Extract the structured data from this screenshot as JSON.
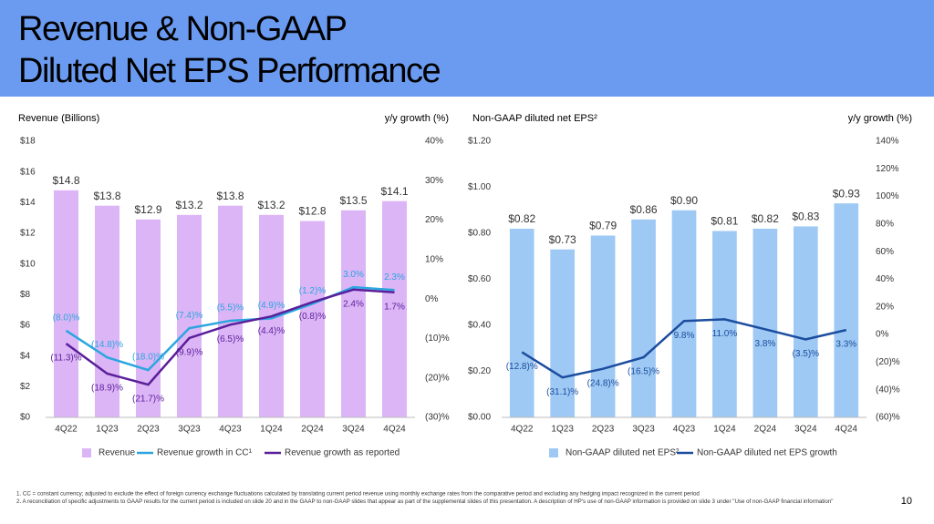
{
  "title": "Revenue & Non-GAAP Diluted Net EPS Performance",
  "footnotes": [
    "1.  CC = constant currency; adjusted to exclude the effect of foreign currency exchange fluctuations calculated by translating current period revenue using monthly exchange rates from the comparative period and excluding any hedging impact recognized in the current period",
    "2.  A reconciliation of specific adjustments to GAAP results for the current period is included on slide 20 and in the GAAP to non-GAAP slides that appear as part of the supplemental slides of this presentation. A description of HP's use of non-GAAP information is provided on slide 3 under \"Use of non-GAAP financial information\""
  ],
  "page_number": "10",
  "chart_data": [
    {
      "type": "bar",
      "y_label": "Revenue (Billions)",
      "y2_label": "y/y growth (%)",
      "categories": [
        "4Q22",
        "1Q23",
        "2Q23",
        "3Q23",
        "4Q23",
        "1Q24",
        "2Q24",
        "3Q24",
        "4Q24"
      ],
      "ylim": [
        0,
        18
      ],
      "yticks": [
        {
          "value": 0,
          "label": "$0"
        },
        {
          "value": 2,
          "label": "$2"
        },
        {
          "value": 4,
          "label": "$4"
        },
        {
          "value": 6,
          "label": "$6"
        },
        {
          "value": 8,
          "label": "$8"
        },
        {
          "value": 10,
          "label": "$10"
        },
        {
          "value": 12,
          "label": "$12"
        },
        {
          "value": 14,
          "label": "$14"
        },
        {
          "value": 16,
          "label": "$16"
        },
        {
          "value": 18,
          "label": "$18"
        }
      ],
      "y2lim": [
        -30,
        40
      ],
      "y2ticks": [
        {
          "value": -30,
          "label": "(30)%"
        },
        {
          "value": -20,
          "label": "(20)%"
        },
        {
          "value": -10,
          "label": "(10)%"
        },
        {
          "value": 0,
          "label": "0%"
        },
        {
          "value": 10,
          "label": "10%"
        },
        {
          "value": 20,
          "label": "20%"
        },
        {
          "value": 30,
          "label": "30%"
        },
        {
          "value": 40,
          "label": "40%"
        }
      ],
      "series": [
        {
          "name": "Revenue",
          "color": "#dcb5f6",
          "values": [
            14.8,
            13.8,
            12.9,
            13.2,
            13.8,
            13.2,
            12.8,
            13.5,
            14.1
          ],
          "value_labels": [
            "$14.8",
            "$13.8",
            "$12.9",
            "$13.2",
            "$13.8",
            "$13.2",
            "$12.8",
            "$13.5",
            "$14.1"
          ]
        },
        {
          "name": "Revenue growth in CC¹",
          "color": "#2ba6df",
          "axis": "y2",
          "values": [
            -8.0,
            -14.8,
            -18.0,
            -7.4,
            -5.5,
            -4.9,
            -1.2,
            3.0,
            2.3
          ],
          "value_labels": [
            "(8.0)%",
            "(14.8)%",
            "(18.0)%",
            "(7.4)%",
            "(5.5)%",
            "(4.9)%",
            "(1.2)%",
            "3.0%",
            "2.3%"
          ]
        },
        {
          "name": "Revenue growth as reported",
          "color": "#5a1f9a",
          "axis": "y2",
          "values": [
            -11.3,
            -18.9,
            -21.7,
            -9.9,
            -6.5,
            -4.4,
            -0.8,
            2.4,
            1.7
          ],
          "value_labels": [
            "(11.3)%",
            "(18.9)%",
            "(21.7)%",
            "(9.9)%",
            "(6.5)%",
            "(4.4)%",
            "(0.8)%",
            "2.4%",
            "1.7%"
          ]
        }
      ]
    },
    {
      "type": "bar",
      "y_label": "Non-GAAP diluted net EPS²",
      "y2_label": "y/y growth (%)",
      "categories": [
        "4Q22",
        "1Q23",
        "2Q23",
        "3Q23",
        "4Q23",
        "1Q24",
        "2Q24",
        "3Q24",
        "4Q24"
      ],
      "ylim": [
        0,
        1.2
      ],
      "yticks": [
        {
          "value": 0,
          "label": "$0.00"
        },
        {
          "value": 0.2,
          "label": "$0.20"
        },
        {
          "value": 0.4,
          "label": "$0.40"
        },
        {
          "value": 0.6,
          "label": "$0.60"
        },
        {
          "value": 0.8,
          "label": "$0.80"
        },
        {
          "value": 1.0,
          "label": "$1.00"
        },
        {
          "value": 1.2,
          "label": "$1.20"
        }
      ],
      "y2lim": [
        -60,
        140
      ],
      "y2ticks": [
        {
          "value": -60,
          "label": "(60)%"
        },
        {
          "value": -40,
          "label": "(40)%"
        },
        {
          "value": -20,
          "label": "(20)%"
        },
        {
          "value": 0,
          "label": "0%"
        },
        {
          "value": 20,
          "label": "20%"
        },
        {
          "value": 40,
          "label": "40%"
        },
        {
          "value": 60,
          "label": "60%"
        },
        {
          "value": 80,
          "label": "80%"
        },
        {
          "value": 100,
          "label": "100%"
        },
        {
          "value": 120,
          "label": "120%"
        },
        {
          "value": 140,
          "label": "140%"
        }
      ],
      "series": [
        {
          "name": "Non-GAAP diluted net EPS²",
          "color": "#9ec9f4",
          "values": [
            0.82,
            0.73,
            0.79,
            0.86,
            0.9,
            0.81,
            0.82,
            0.83,
            0.93
          ],
          "value_labels": [
            "$0.82",
            "$0.73",
            "$0.79",
            "$0.86",
            "$0.90",
            "$0.81",
            "$0.82",
            "$0.83",
            "$0.93"
          ]
        },
        {
          "name": "Non-GAAP diluted net EPS growth",
          "color": "#1c4d9e",
          "axis": "y2",
          "values": [
            -12.8,
            -31.1,
            -24.8,
            -16.5,
            9.8,
            11.0,
            3.8,
            -3.5,
            3.3
          ],
          "value_labels": [
            "(12.8)%",
            "(31.1)%",
            "(24.8)%",
            "(16.5)%",
            "9.8%",
            "11.0%",
            "3.8%",
            "(3.5)%",
            "3.3%"
          ]
        }
      ]
    }
  ]
}
